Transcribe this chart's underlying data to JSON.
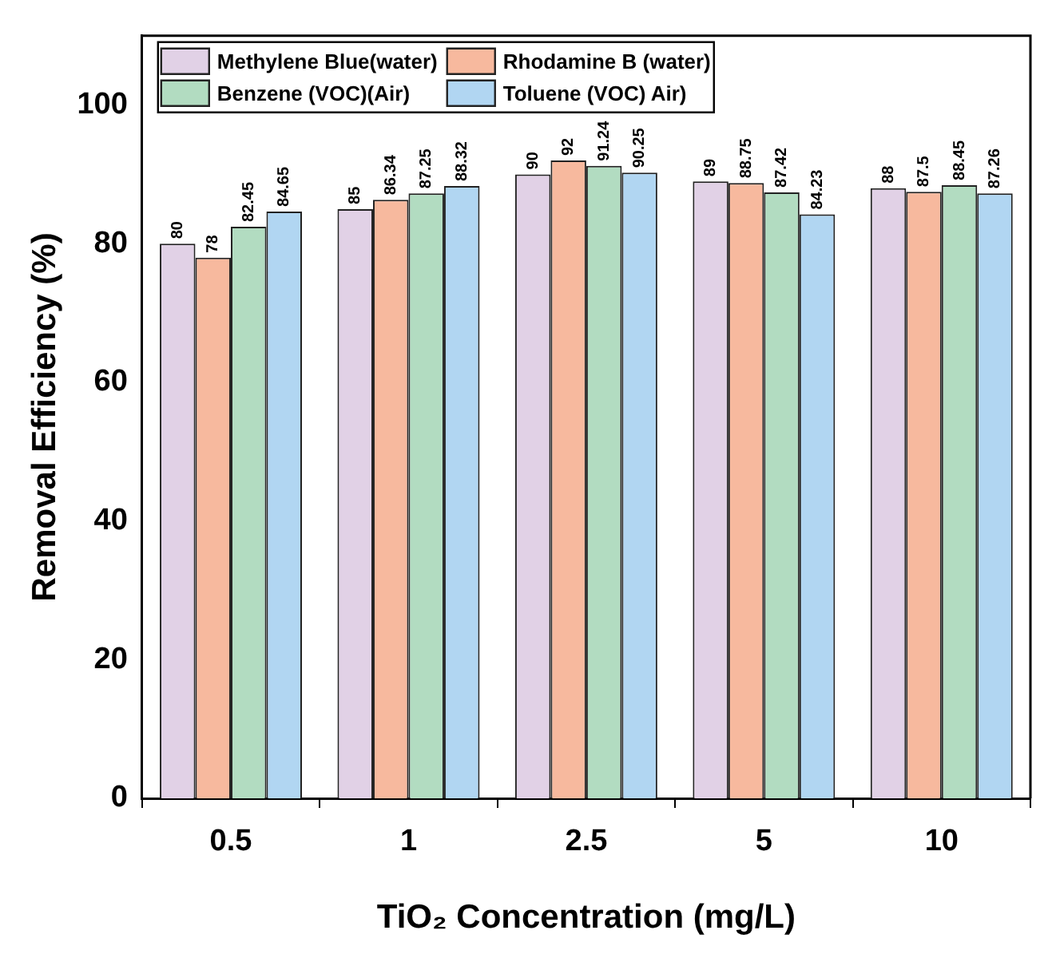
{
  "chart_data": {
    "type": "bar",
    "xlabel": "TiO₂ Concentration (mg/L)",
    "ylabel": "Removal Efficiency (%)",
    "categories": [
      "0.5",
      "1",
      "2.5",
      "5",
      "10"
    ],
    "series": [
      {
        "name": "Methylene Blue(water)",
        "color": "#e1d1e6",
        "values": [
          80,
          85,
          90,
          89,
          88
        ]
      },
      {
        "name": "Rhodamine B (water)",
        "color": "#f7b99e",
        "values": [
          78,
          86.34,
          92,
          88.75,
          87.5
        ]
      },
      {
        "name": "Benzene (VOC)(Air)",
        "color": "#b2dcc1",
        "values": [
          82.45,
          87.25,
          91.24,
          87.42,
          88.45
        ]
      },
      {
        "name": "Toluene (VOC) Air)",
        "color": "#b1d6f2",
        "values": [
          84.65,
          88.32,
          90.25,
          84.23,
          87.26
        ]
      }
    ],
    "ylim": [
      0,
      110
    ],
    "yticks": [
      0,
      20,
      40,
      60,
      80,
      100
    ],
    "grid": false,
    "legend": "top left",
    "data_labels": true
  }
}
